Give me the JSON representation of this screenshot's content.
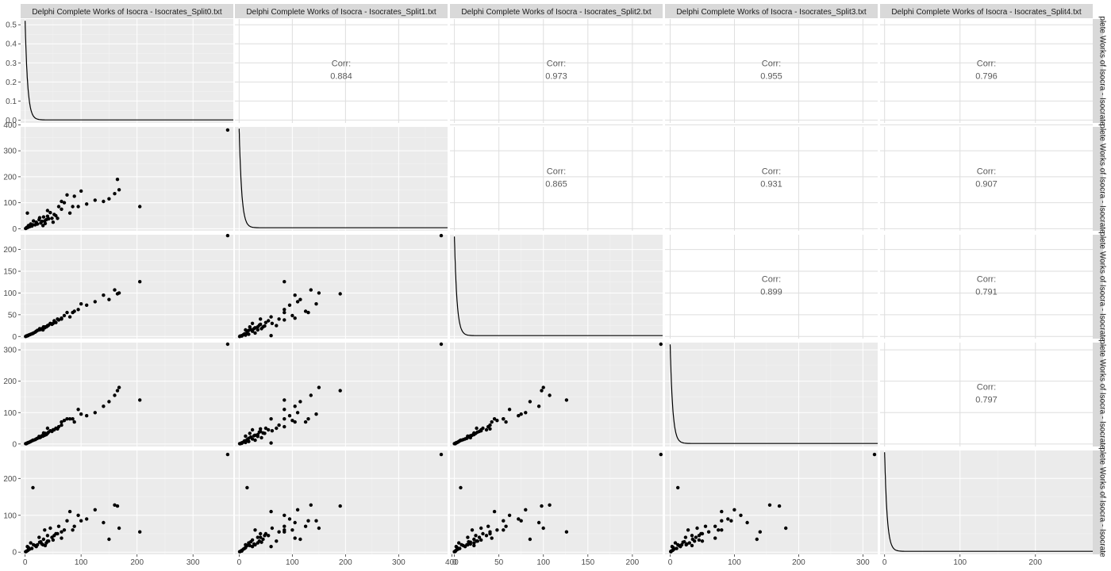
{
  "variables": [
    "Delphi Complete Works of Isocra - Isocrates_Split0.txt",
    "Delphi Complete Works of Isocra - Isocrates_Split1.txt",
    "Delphi Complete Works of Isocra - Isocrates_Split2.txt",
    "Delphi Complete Works of Isocra - Isocrates_Split3.txt",
    "Delphi Complete Works of Isocra - Isocrates_Split4.txt"
  ],
  "row_strip_labels": [
    "plete Works of Isocra - Isocrate",
    "plete Works of Isocra - Isocrate",
    "plete Works of Isocra - Isocrate",
    "plete Works of Isocra - Isocrate",
    "plete Works of Isocra - Isocrate"
  ],
  "corr_label": "Corr:",
  "colors": {
    "panel_bg": "#ebebeb",
    "grid_major": "#ffffff",
    "grid_minor": "#f4f4f4",
    "strip_bg": "#d9d9d9",
    "point": "#000000",
    "corr_grid": "#dedede",
    "corr_text": "#5a5a5a"
  },
  "chart_data": {
    "type": "scatter",
    "subtype": "pairs-matrix",
    "title": "",
    "axes": {
      "x": [
        {
          "range": [
            -8,
            372
          ],
          "ticks": [
            0,
            100,
            200,
            300
          ]
        },
        {
          "range": [
            -8,
            392
          ],
          "ticks": [
            0,
            100,
            200,
            300,
            400
          ]
        },
        {
          "range": [
            -5,
            234
          ],
          "ticks": [
            0,
            50,
            100,
            150,
            200
          ]
        },
        {
          "range": [
            -8,
            323
          ],
          "ticks": [
            0,
            100,
            200,
            300
          ]
        },
        {
          "range": [
            -6,
            276
          ],
          "ticks": [
            0,
            100,
            200
          ]
        }
      ],
      "y": [
        {
          "range": [
            -8,
            392
          ],
          "ticks": [
            0,
            100,
            200,
            300,
            400
          ]
        },
        {
          "range": [
            -5,
            234
          ],
          "ticks": [
            0,
            50,
            100,
            150,
            200
          ]
        },
        {
          "range": [
            -8,
            323
          ],
          "ticks": [
            0,
            100,
            200,
            300
          ]
        },
        {
          "range": [
            -6,
            276
          ],
          "ticks": [
            0,
            100,
            200
          ]
        }
      ],
      "density_y": {
        "range": [
          -0.015,
          0.53
        ],
        "ticks": [
          0.0,
          0.1,
          0.2,
          0.3,
          0.4,
          0.5
        ],
        "tick_labels": [
          "0.0",
          "0.1",
          "0.2",
          "0.3",
          "0.4",
          "0.5"
        ]
      }
    },
    "density_peaks": [
      0.52,
      0.52,
      0.52,
      0.52,
      0.52
    ],
    "correlations": [
      {
        "row": 0,
        "col": 1,
        "value": "0.884"
      },
      {
        "row": 0,
        "col": 2,
        "value": "0.973"
      },
      {
        "row": 0,
        "col": 3,
        "value": "0.955"
      },
      {
        "row": 0,
        "col": 4,
        "value": "0.796"
      },
      {
        "row": 1,
        "col": 2,
        "value": "0.865"
      },
      {
        "row": 1,
        "col": 3,
        "value": "0.931"
      },
      {
        "row": 1,
        "col": 4,
        "value": "0.907"
      },
      {
        "row": 2,
        "col": 3,
        "value": "0.899"
      },
      {
        "row": 2,
        "col": 4,
        "value": "0.791"
      },
      {
        "row": 3,
        "col": 4,
        "value": "0.797"
      }
    ],
    "points": [
      [
        362,
        380,
        232,
        318,
        265
      ],
      [
        205,
        85,
        126,
        140,
        55
      ],
      [
        168,
        150,
        100,
        180,
        65
      ],
      [
        165,
        190,
        98,
        170,
        125
      ],
      [
        160,
        135,
        107,
        155,
        128
      ],
      [
        150,
        115,
        85,
        135,
        35
      ],
      [
        140,
        105,
        95,
        120,
        80
      ],
      [
        125,
        110,
        80,
        100,
        115
      ],
      [
        110,
        95,
        72,
        90,
        90
      ],
      [
        100,
        145,
        75,
        95,
        85
      ],
      [
        95,
        85,
        62,
        110,
        100
      ],
      [
        88,
        125,
        58,
        70,
        70
      ],
      [
        80,
        60,
        45,
        80,
        110
      ],
      [
        75,
        130,
        55,
        80,
        85
      ],
      [
        70,
        100,
        48,
        75,
        60
      ],
      [
        65,
        75,
        40,
        60,
        55
      ],
      [
        60,
        85,
        38,
        55,
        70
      ],
      [
        55,
        50,
        32,
        50,
        50
      ],
      [
        52,
        55,
        36,
        45,
        45
      ],
      [
        48,
        40,
        28,
        40,
        40
      ],
      [
        45,
        62,
        30,
        42,
        65
      ],
      [
        42,
        38,
        26,
        38,
        30
      ],
      [
        40,
        48,
        24,
        34,
        45
      ],
      [
        38,
        35,
        22,
        30,
        25
      ],
      [
        35,
        30,
        20,
        28,
        60
      ],
      [
        33,
        45,
        22,
        35,
        35
      ],
      [
        30,
        28,
        18,
        26,
        22
      ],
      [
        28,
        22,
        16,
        22,
        28
      ],
      [
        25,
        35,
        15,
        24,
        40
      ],
      [
        22,
        18,
        14,
        18,
        20
      ],
      [
        20,
        25,
        12,
        16,
        15
      ],
      [
        18,
        15,
        10,
        14,
        18
      ],
      [
        15,
        30,
        8,
        12,
        20
      ],
      [
        12,
        10,
        6,
        10,
        10
      ],
      [
        10,
        18,
        5,
        8,
        25
      ],
      [
        8,
        8,
        4,
        6,
        8
      ],
      [
        6,
        12,
        3,
        5,
        12
      ],
      [
        5,
        5,
        2,
        4,
        5
      ],
      [
        4,
        60,
        2,
        3,
        15
      ],
      [
        3,
        5,
        1,
        2,
        3
      ],
      [
        2,
        2,
        1,
        1,
        2
      ],
      [
        1,
        1,
        0,
        1,
        1
      ],
      [
        14,
        15,
        7,
        12,
        175
      ],
      [
        32,
        12,
        15,
        25,
        20
      ],
      [
        40,
        70,
        25,
        50,
        30
      ],
      [
        58,
        40,
        40,
        48,
        50
      ],
      [
        65,
        105,
        42,
        70,
        38
      ],
      [
        85,
        85,
        55,
        80,
        60
      ],
      [
        50,
        25,
        30,
        45,
        33
      ],
      [
        26,
        42,
        18,
        20,
        27
      ],
      [
        36,
        20,
        22,
        34,
        18
      ]
    ]
  }
}
